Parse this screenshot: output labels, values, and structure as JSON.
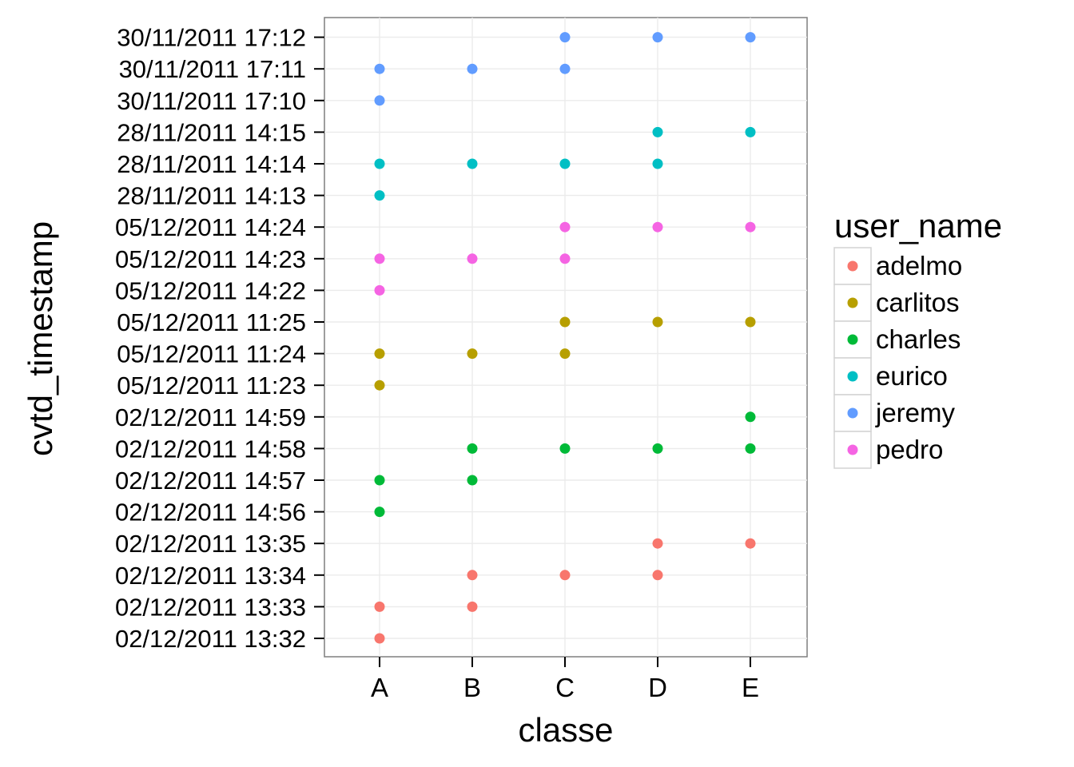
{
  "chart_data": {
    "type": "scatter",
    "xlabel": "classe",
    "ylabel": "cvtd_timestamp",
    "categories": [
      "A",
      "B",
      "C",
      "D",
      "E"
    ],
    "y_categories": [
      "02/12/2011 13:32",
      "02/12/2011 13:33",
      "02/12/2011 13:34",
      "02/12/2011 13:35",
      "02/12/2011 14:56",
      "02/12/2011 14:57",
      "02/12/2011 14:58",
      "02/12/2011 14:59",
      "05/12/2011 11:23",
      "05/12/2011 11:24",
      "05/12/2011 11:25",
      "05/12/2011 14:22",
      "05/12/2011 14:23",
      "05/12/2011 14:24",
      "28/11/2011 14:13",
      "28/11/2011 14:14",
      "28/11/2011 14:15",
      "30/11/2011 17:10",
      "30/11/2011 17:11",
      "30/11/2011 17:12"
    ],
    "legend": {
      "title": "user_name",
      "placement": "right"
    },
    "grid": true,
    "series": [
      {
        "name": "adelmo",
        "color": "#F8766D",
        "points": [
          [
            "A",
            "02/12/2011 13:32"
          ],
          [
            "A",
            "02/12/2011 13:33"
          ],
          [
            "B",
            "02/12/2011 13:33"
          ],
          [
            "B",
            "02/12/2011 13:34"
          ],
          [
            "C",
            "02/12/2011 13:34"
          ],
          [
            "D",
            "02/12/2011 13:34"
          ],
          [
            "D",
            "02/12/2011 13:35"
          ],
          [
            "E",
            "02/12/2011 13:35"
          ]
        ]
      },
      {
        "name": "carlitos",
        "color": "#B79F00",
        "points": [
          [
            "A",
            "05/12/2011 11:23"
          ],
          [
            "A",
            "05/12/2011 11:24"
          ],
          [
            "B",
            "05/12/2011 11:24"
          ],
          [
            "C",
            "05/12/2011 11:24"
          ],
          [
            "C",
            "05/12/2011 11:25"
          ],
          [
            "D",
            "05/12/2011 11:25"
          ],
          [
            "E",
            "05/12/2011 11:25"
          ]
        ]
      },
      {
        "name": "charles",
        "color": "#00BA38",
        "points": [
          [
            "A",
            "02/12/2011 14:56"
          ],
          [
            "A",
            "02/12/2011 14:57"
          ],
          [
            "B",
            "02/12/2011 14:57"
          ],
          [
            "B",
            "02/12/2011 14:58"
          ],
          [
            "C",
            "02/12/2011 14:58"
          ],
          [
            "D",
            "02/12/2011 14:58"
          ],
          [
            "E",
            "02/12/2011 14:58"
          ],
          [
            "E",
            "02/12/2011 14:59"
          ]
        ]
      },
      {
        "name": "eurico",
        "color": "#00BFC4",
        "points": [
          [
            "A",
            "28/11/2011 14:13"
          ],
          [
            "A",
            "28/11/2011 14:14"
          ],
          [
            "B",
            "28/11/2011 14:14"
          ],
          [
            "C",
            "28/11/2011 14:14"
          ],
          [
            "D",
            "28/11/2011 14:14"
          ],
          [
            "D",
            "28/11/2011 14:15"
          ],
          [
            "E",
            "28/11/2011 14:15"
          ]
        ]
      },
      {
        "name": "jeremy",
        "color": "#619CFF",
        "points": [
          [
            "A",
            "30/11/2011 17:10"
          ],
          [
            "A",
            "30/11/2011 17:11"
          ],
          [
            "B",
            "30/11/2011 17:11"
          ],
          [
            "C",
            "30/11/2011 17:11"
          ],
          [
            "C",
            "30/11/2011 17:12"
          ],
          [
            "D",
            "30/11/2011 17:12"
          ],
          [
            "E",
            "30/11/2011 17:12"
          ]
        ]
      },
      {
        "name": "pedro",
        "color": "#F564E3",
        "points": [
          [
            "A",
            "05/12/2011 14:22"
          ],
          [
            "A",
            "05/12/2011 14:23"
          ],
          [
            "B",
            "05/12/2011 14:23"
          ],
          [
            "C",
            "05/12/2011 14:23"
          ],
          [
            "C",
            "05/12/2011 14:24"
          ],
          [
            "D",
            "05/12/2011 14:24"
          ],
          [
            "E",
            "05/12/2011 14:24"
          ]
        ]
      }
    ]
  }
}
